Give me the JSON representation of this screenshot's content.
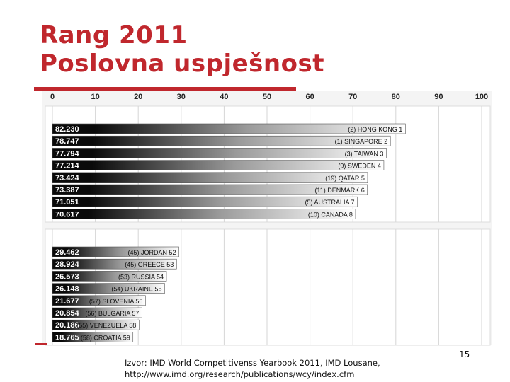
{
  "title_line1": "Rang 2011",
  "title_line2": "Poslovna uspješnost",
  "colors": {
    "accent": "#c0272d",
    "bar_dark": "#0a0a0a",
    "bar_light": "#ffffff"
  },
  "chart_data": {
    "type": "bar",
    "orientation": "horizontal",
    "xlim": [
      0,
      100
    ],
    "x_ticks": [
      "0",
      "10",
      "20",
      "30",
      "40",
      "50",
      "60",
      "70",
      "80",
      "90",
      "100"
    ],
    "grid": true,
    "groups": [
      {
        "bars": [
          {
            "value": 82.23,
            "value_label": "82.230",
            "country_label": "(2) HONG KONG 1"
          },
          {
            "value": 78.747,
            "value_label": "78.747",
            "country_label": "(1) SINGAPORE 2"
          },
          {
            "value": 77.794,
            "value_label": "77.794",
            "country_label": "(3) TAIWAN 3"
          },
          {
            "value": 77.214,
            "value_label": "77.214",
            "country_label": "(9) SWEDEN 4"
          },
          {
            "value": 73.424,
            "value_label": "73.424",
            "country_label": "(19) QATAR 5"
          },
          {
            "value": 73.387,
            "value_label": "73.387",
            "country_label": "(11) DENMARK 6"
          },
          {
            "value": 71.051,
            "value_label": "71.051",
            "country_label": "(5) AUSTRALIA 7"
          },
          {
            "value": 70.617,
            "value_label": "70.617",
            "country_label": "(10) CANADA 8"
          }
        ]
      },
      {
        "bars": [
          {
            "value": 29.462,
            "value_label": "29.462",
            "country_label": "(45) JORDAN 52"
          },
          {
            "value": 28.924,
            "value_label": "28.924",
            "country_label": "(45) GREECE 53"
          },
          {
            "value": 26.573,
            "value_label": "26.573",
            "country_label": "(53) RUSSIA 54"
          },
          {
            "value": 26.148,
            "value_label": "26.148",
            "country_label": "(54) UKRAINE 55"
          },
          {
            "value": 21.677,
            "value_label": "21.677",
            "country_label": "(57) SLOVENIA 56"
          },
          {
            "value": 20.854,
            "value_label": "20.854",
            "country_label": "(56) BULGARIA 57"
          },
          {
            "value": 20.186,
            "value_label": "20.186",
            "country_label": "(55) VENEZUELA 58"
          },
          {
            "value": 18.765,
            "value_label": "18.765",
            "country_label": "(58) CROATIA 59"
          }
        ]
      }
    ]
  },
  "footer": {
    "source_text": "Izvor: IMD World Competitivenss Yearbook 2011, IMD Lousane,",
    "source_url": "http://www.imd.org/research/publications/wcy/index.cfm",
    "page_number": "15"
  }
}
